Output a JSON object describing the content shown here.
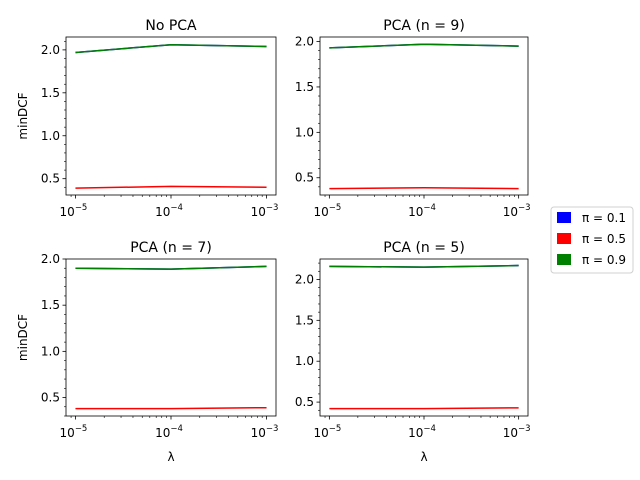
{
  "figure": {
    "ylabel": "minDCF",
    "xlabel": "λ",
    "x_tick_labels": [
      "10",
      "10",
      "10"
    ],
    "x_tick_exponents": [
      "−5",
      "−4",
      "−3"
    ]
  },
  "legend": {
    "placement": "right-center",
    "items": [
      {
        "label": "π = 0.1",
        "color": "#0000ff"
      },
      {
        "label": "π = 0.5",
        "color": "#ff0000"
      },
      {
        "label": "π = 0.9",
        "color": "#008000"
      }
    ]
  },
  "chart_data": [
    {
      "type": "line",
      "title": "No PCA",
      "xlabel": "",
      "ylabel": "minDCF",
      "xscale": "log",
      "x": [
        1e-05,
        0.0001,
        0.001
      ],
      "ylim": [
        0.31,
        2.15
      ],
      "yticks": [
        "0.5",
        "1.0",
        "1.5",
        "2.0"
      ],
      "grid": false,
      "series": [
        {
          "name": "π = 0.1",
          "values": [
            1.97,
            2.06,
            2.04
          ],
          "color": "#0000ff"
        },
        {
          "name": "π = 0.5",
          "values": [
            0.39,
            0.41,
            0.4
          ],
          "color": "#ff0000"
        },
        {
          "name": "π = 0.9",
          "values": [
            1.97,
            2.06,
            2.04
          ],
          "color": "#008000"
        }
      ]
    },
    {
      "type": "line",
      "title": "PCA (n = 9)",
      "xlabel": "",
      "ylabel": "",
      "xscale": "log",
      "x": [
        1e-05,
        0.0001,
        0.001
      ],
      "ylim": [
        0.31,
        2.05
      ],
      "yticks": [
        "0.5",
        "1.0",
        "1.5",
        "2.0"
      ],
      "grid": false,
      "series": [
        {
          "name": "π = 0.1",
          "values": [
            1.93,
            1.97,
            1.95
          ],
          "color": "#0000ff"
        },
        {
          "name": "π = 0.5",
          "values": [
            0.38,
            0.39,
            0.38
          ],
          "color": "#ff0000"
        },
        {
          "name": "π = 0.9",
          "values": [
            1.93,
            1.97,
            1.95
          ],
          "color": "#008000"
        }
      ]
    },
    {
      "type": "line",
      "title": "PCA (n = 7)",
      "xlabel": "λ",
      "ylabel": "minDCF",
      "xscale": "log",
      "x": [
        1e-05,
        0.0001,
        0.001
      ],
      "ylim": [
        0.3,
        2.0
      ],
      "yticks": [
        "0.5",
        "1.0",
        "1.5",
        "2.0"
      ],
      "grid": false,
      "series": [
        {
          "name": "π = 0.1",
          "values": [
            1.9,
            1.89,
            1.92
          ],
          "color": "#0000ff"
        },
        {
          "name": "π = 0.5",
          "values": [
            0.38,
            0.38,
            0.39
          ],
          "color": "#ff0000"
        },
        {
          "name": "π = 0.9",
          "values": [
            1.9,
            1.89,
            1.92
          ],
          "color": "#008000"
        }
      ]
    },
    {
      "type": "line",
      "title": "PCA (n = 5)",
      "xlabel": "λ",
      "ylabel": "",
      "xscale": "log",
      "x": [
        1e-05,
        0.0001,
        0.001
      ],
      "ylim": [
        0.33,
        2.25
      ],
      "yticks": [
        "0.5",
        "1.0",
        "1.5",
        "2.0"
      ],
      "grid": false,
      "series": [
        {
          "name": "π = 0.1",
          "values": [
            2.16,
            2.15,
            2.17
          ],
          "color": "#0000ff"
        },
        {
          "name": "π = 0.5",
          "values": [
            0.42,
            0.42,
            0.43
          ],
          "color": "#ff0000"
        },
        {
          "name": "π = 0.9",
          "values": [
            2.16,
            2.15,
            2.17
          ],
          "color": "#008000"
        }
      ]
    }
  ]
}
